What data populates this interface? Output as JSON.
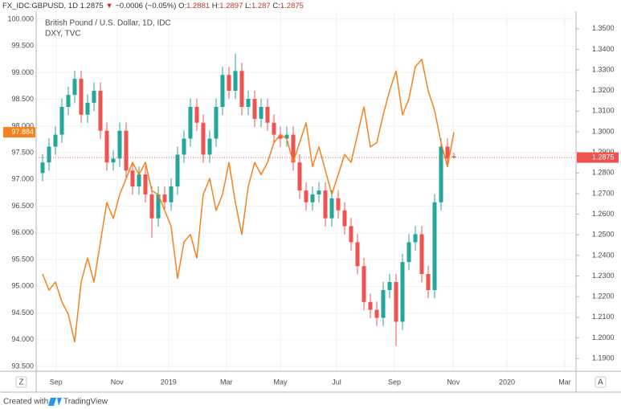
{
  "header": {
    "symbol": "FX_IDC:GBPUSD, 1D",
    "arrow": "▼",
    "change": "−0.0006 (−0.05%)",
    "open_label": "O:",
    "high_label": "H:",
    "low_label": "L:",
    "close_label": "C:"
  },
  "chart_data": {
    "type": "candlestick",
    "title": "British Pound / U.S. Dollar, 1D, IDC",
    "x": [
      0,
      1,
      2,
      3,
      4,
      5,
      6,
      7,
      8,
      9,
      10,
      11,
      12,
      13,
      14,
      15,
      16,
      17,
      18,
      19,
      20,
      21,
      22,
      23,
      24,
      25,
      26,
      27,
      28,
      29,
      30,
      31,
      32,
      33,
      34,
      35,
      36,
      37,
      38,
      39,
      40,
      41,
      42,
      43,
      44,
      45,
      46,
      47,
      48,
      49,
      50,
      51,
      52,
      53,
      54,
      55,
      56,
      57,
      58,
      59,
      60,
      61,
      62,
      63,
      64
    ],
    "xlim": [
      -1,
      83
    ],
    "xticks": [
      {
        "value": 2.1,
        "label": "Sep"
      },
      {
        "value": 11.6,
        "label": "Nov"
      },
      {
        "value": 19.6,
        "label": "2019"
      },
      {
        "value": 28.6,
        "label": "Mar"
      },
      {
        "value": 37,
        "label": "May"
      },
      {
        "value": 45.75,
        "label": "Jul"
      },
      {
        "value": 54.75,
        "label": "Sep"
      },
      {
        "value": 63.9,
        "label": "Nov"
      },
      {
        "value": 72.25,
        "label": "2020"
      },
      {
        "value": 81.25,
        "label": "Mar"
      }
    ],
    "ylim": [
      93.411,
      100.149
    ],
    "yticks": [
      {
        "value": 100,
        "label": "100.000"
      },
      {
        "value": 99.5,
        "label": "99.500"
      },
      {
        "value": 99,
        "label": "99.000"
      },
      {
        "value": 98.5,
        "label": "98.500"
      },
      {
        "value": 98,
        "label": "98.000"
      },
      {
        "value": 97.5,
        "label": "97.500"
      },
      {
        "value": 97,
        "label": "97.000"
      },
      {
        "value": 96.5,
        "label": "96.500"
      },
      {
        "value": 96,
        "label": "96.000"
      },
      {
        "value": 95.5,
        "label": "95.500"
      },
      {
        "value": 95,
        "label": "95.000"
      },
      {
        "value": 94.5,
        "label": "94.500"
      },
      {
        "value": 94,
        "label": "94.000"
      },
      {
        "value": 93.5,
        "label": "93.500"
      }
    ],
    "y2lim": [
      1.1838,
      1.3585
    ],
    "y2ticks": [
      {
        "value": 1.35,
        "label": "1.3500"
      },
      {
        "value": 1.34,
        "label": "1.3400"
      },
      {
        "value": 1.33,
        "label": "1.3300"
      },
      {
        "value": 1.32,
        "label": "1.3200"
      },
      {
        "value": 1.31,
        "label": "1.3100"
      },
      {
        "value": 1.3,
        "label": "1.3000"
      },
      {
        "value": 1.29,
        "label": "1.2900"
      },
      {
        "value": 1.28,
        "label": "1.2800"
      },
      {
        "value": 1.27,
        "label": "1.2700"
      },
      {
        "value": 1.26,
        "label": "1.2600"
      },
      {
        "value": 1.25,
        "label": "1.2500"
      },
      {
        "value": 1.24,
        "label": "1.2400"
      },
      {
        "value": 1.23,
        "label": "1.2300"
      },
      {
        "value": 1.22,
        "label": "1.2200"
      },
      {
        "value": 1.21,
        "label": "1.2100"
      },
      {
        "value": 1.2,
        "label": "1.2000"
      },
      {
        "value": 1.19,
        "label": "1.1900"
      }
    ],
    "grid": true,
    "series": [
      {
        "name": "British Pound / U.S. Dollar, 1D, IDC",
        "type": "candlestick",
        "axis": "y2",
        "up_color": "#26a69a",
        "down_color": "#ef5350",
        "open": [
          1.28,
          1.2851,
          1.2928,
          1.2986,
          1.3121,
          1.3179,
          1.3257,
          1.3083,
          1.3141,
          1.3199,
          1.3005,
          1.2851,
          1.287,
          1.3005,
          1.2812,
          1.2735,
          1.2793,
          1.2696,
          1.258,
          1.2696,
          1.2658,
          1.2735,
          1.2889,
          1.2967,
          1.3121,
          1.3044,
          1.2889,
          1.2967,
          1.3121,
          1.3276,
          1.3199,
          1.3295,
          1.3121,
          1.316,
          1.3063,
          1.3121,
          1.3044,
          1.2986,
          1.2967,
          1.2986,
          1.2851,
          1.2715,
          1.2658,
          1.2696,
          1.2715,
          1.258,
          1.2677,
          1.2619,
          1.2542,
          1.2464,
          1.2348,
          1.2174,
          1.2136,
          1.2097,
          1.2232,
          1.2271,
          1.2078,
          1.2368,
          1.2464,
          1.2503,
          1.231,
          1.2232,
          1.2658,
          1.2928,
          1.2881
        ],
        "high": [
          1.2891,
          1.2968,
          1.3026,
          1.3161,
          1.3219,
          1.3297,
          1.3297,
          1.3181,
          1.3239,
          1.3239,
          1.3045,
          1.291,
          1.3045,
          1.3045,
          1.2852,
          1.2833,
          1.2833,
          1.2736,
          1.2736,
          1.2736,
          1.2775,
          1.2929,
          1.3007,
          1.3161,
          1.3161,
          1.3084,
          1.3007,
          1.3161,
          1.3316,
          1.3316,
          1.338,
          1.3335,
          1.32,
          1.32,
          1.3161,
          1.3161,
          1.3084,
          1.3026,
          1.3026,
          1.3026,
          1.2891,
          1.2755,
          1.2736,
          1.2755,
          1.2755,
          1.2717,
          1.2717,
          1.2659,
          1.2582,
          1.2504,
          1.2388,
          1.2214,
          1.2176,
          1.2272,
          1.2311,
          1.2311,
          1.2408,
          1.2504,
          1.2543,
          1.2543,
          1.235,
          1.2698,
          1.2968,
          1.2968,
          1.2897
        ],
        "low": [
          1.276,
          1.2811,
          1.2888,
          1.2946,
          1.3081,
          1.3139,
          1.3043,
          1.3043,
          1.3101,
          1.2965,
          1.2811,
          1.2811,
          1.283,
          1.2772,
          1.2695,
          1.2695,
          1.2656,
          1.2485,
          1.254,
          1.2618,
          1.2618,
          1.2695,
          1.2849,
          1.2927,
          1.3004,
          1.2849,
          1.2849,
          1.2927,
          1.3081,
          1.3159,
          1.3159,
          1.3081,
          1.3081,
          1.3023,
          1.3023,
          1.3004,
          1.2946,
          1.2927,
          1.2927,
          1.2811,
          1.2675,
          1.2618,
          1.2618,
          1.2656,
          1.254,
          1.254,
          1.2579,
          1.2502,
          1.2424,
          1.2308,
          1.2134,
          1.2096,
          1.2057,
          1.2057,
          1.2192,
          1.196,
          1.2038,
          1.2328,
          1.2424,
          1.227,
          1.2192,
          1.2192,
          1.2618,
          1.283,
          1.287
        ],
        "close": [
          1.2851,
          1.2928,
          1.2986,
          1.3121,
          1.3179,
          1.3257,
          1.3083,
          1.3141,
          1.3199,
          1.3005,
          1.2851,
          1.287,
          1.3005,
          1.2812,
          1.2735,
          1.2793,
          1.2696,
          1.258,
          1.2696,
          1.2658,
          1.2735,
          1.2889,
          1.2967,
          1.3121,
          1.3044,
          1.2889,
          1.2967,
          1.3121,
          1.3276,
          1.3199,
          1.3295,
          1.3121,
          1.316,
          1.3063,
          1.3121,
          1.3044,
          1.2986,
          1.2967,
          1.2986,
          1.2851,
          1.2715,
          1.2658,
          1.2696,
          1.2715,
          1.258,
          1.2677,
          1.2619,
          1.2542,
          1.2464,
          1.2348,
          1.2174,
          1.2136,
          1.2097,
          1.2232,
          1.2271,
          1.2078,
          1.2368,
          1.2464,
          1.2503,
          1.231,
          1.2232,
          1.2658,
          1.2928,
          1.287,
          1.2875
        ]
      },
      {
        "name": "DXY, TVC",
        "type": "line",
        "axis": "y",
        "color": "#f5821f",
        "values": [
          95.23,
          94.93,
          95.08,
          94.71,
          94.48,
          93.96,
          95.08,
          95.53,
          95.08,
          95.83,
          96.57,
          96.27,
          96.72,
          97.02,
          97.32,
          97.09,
          97.32,
          96.79,
          96.72,
          96.42,
          96.12,
          95.15,
          95.83,
          95.97,
          95.53,
          96.72,
          97.02,
          96.42,
          96.72,
          97.32,
          96.57,
          95.97,
          96.87,
          97.32,
          97.09,
          97.32,
          97.69,
          97.84,
          97.76,
          97.32,
          97.69,
          98.06,
          97.24,
          97.61,
          97.17,
          96.72,
          97.09,
          97.47,
          97.32,
          97.84,
          98.36,
          97.61,
          97.69,
          98.21,
          98.66,
          99.03,
          98.21,
          98.51,
          99.11,
          99.25,
          98.66,
          98.29,
          97.69,
          97.24,
          97.884
        ]
      }
    ]
  },
  "buttons": {
    "left": "Z",
    "right": "A"
  },
  "footer": {
    "text": "Created with",
    "brand": "TradingView"
  }
}
